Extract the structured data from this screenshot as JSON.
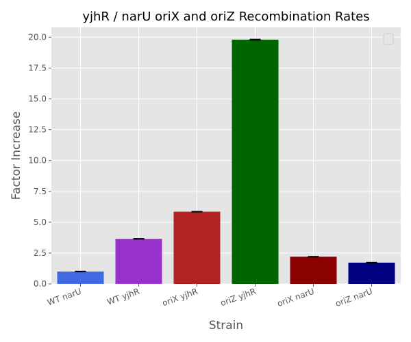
{
  "chart_data": {
    "type": "bar",
    "title": "yjhR / narU oriX and oriZ Recombination Rates",
    "xlabel": "Strain",
    "ylabel": "Factor Increase",
    "categories": [
      "WT narU",
      "WT yjhR",
      "oriX yjhR",
      "oriZ yjhR",
      "oriX narU",
      "oriZ narU"
    ],
    "values": [
      1.0,
      3.65,
      5.85,
      19.8,
      2.2,
      1.72
    ],
    "errors": [
      0.02,
      0.02,
      0.02,
      0.03,
      0.02,
      0.02
    ],
    "colors": [
      "#4169e1",
      "#9932cc",
      "#b22222",
      "#006400",
      "#8b0000",
      "#000080"
    ],
    "ylim": [
      0,
      20.8
    ],
    "yticks": [
      0.0,
      2.5,
      5.0,
      7.5,
      10.0,
      12.5,
      15.0,
      17.5,
      20.0
    ],
    "ytick_labels": [
      "0.0",
      "2.5",
      "5.0",
      "7.5",
      "10.0",
      "12.5",
      "15.0",
      "17.5",
      "20.0"
    ],
    "grid": true,
    "legend": "top-right (empty)",
    "style": "ggplot"
  }
}
